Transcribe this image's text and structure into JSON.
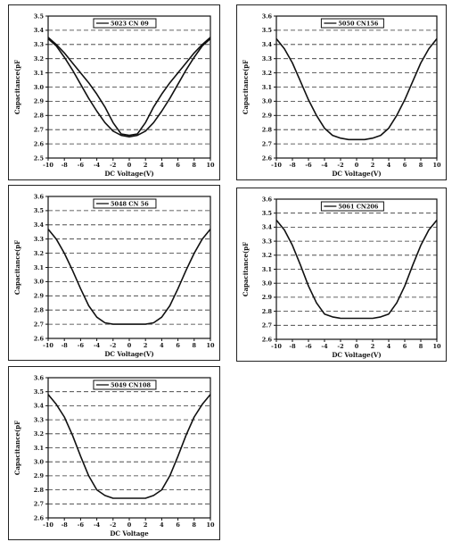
{
  "chart_data": [
    {
      "type": "line",
      "legend": "5023 CN 09",
      "xlabel": "DC Voltage(V)",
      "ylabel": "Capacitance(pF",
      "xlim": [
        -10,
        10
      ],
      "ylim": [
        2.5,
        3.5
      ],
      "xticks": [
        "-10",
        "-8",
        "-6",
        "-4",
        "-2",
        "0",
        "2",
        "4",
        "6",
        "8",
        "10"
      ],
      "yticks": [
        "2.5",
        "2.6",
        "2.7",
        "2.8",
        "2.9",
        "3.0",
        "3.1",
        "3.2",
        "3.3",
        "3.4",
        "3.5"
      ],
      "grid": "horizontal dashed",
      "legend_position": "top-center",
      "series": [
        {
          "x": [
            -10,
            -9,
            -8,
            -7,
            -6,
            -5,
            -4,
            -3,
            -2,
            -1,
            0,
            1,
            2,
            3,
            4,
            5,
            6,
            7,
            8,
            9,
            10
          ],
          "y": [
            3.35,
            3.3,
            3.24,
            3.17,
            3.1,
            3.03,
            2.95,
            2.86,
            2.75,
            2.67,
            2.66,
            2.67,
            2.75,
            2.86,
            2.95,
            3.03,
            3.1,
            3.17,
            3.24,
            3.3,
            3.35
          ]
        },
        {
          "x": [
            -10,
            -9,
            -8,
            -7,
            -6,
            -5,
            -4,
            -3,
            -2,
            -1,
            0,
            1,
            2,
            3,
            4,
            5,
            6,
            7,
            8,
            9,
            10
          ],
          "y": [
            3.34,
            3.29,
            3.21,
            3.12,
            3.02,
            2.92,
            2.83,
            2.75,
            2.69,
            2.66,
            2.65,
            2.66,
            2.69,
            2.75,
            2.83,
            2.92,
            3.02,
            3.12,
            3.21,
            3.29,
            3.34
          ]
        }
      ]
    },
    {
      "type": "line",
      "legend": "5050 CN156",
      "xlabel": "DC Voltage(V)",
      "ylabel": "Capacitance(pF",
      "xlim": [
        -10,
        10
      ],
      "ylim": [
        2.6,
        3.6
      ],
      "xticks": [
        "-10",
        "-8",
        "-6",
        "-4",
        "-2",
        "0",
        "2",
        "4",
        "6",
        "8",
        "10"
      ],
      "yticks": [
        "2.6",
        "2.7",
        "2.8",
        "2.9",
        "3.0",
        "3.1",
        "3.2",
        "3.3",
        "3.4",
        "3.5",
        "3.6"
      ],
      "grid": "horizontal dashed",
      "legend_position": "top-center",
      "series": [
        {
          "x": [
            -10,
            -9,
            -8,
            -7,
            -6,
            -5,
            -4,
            -3,
            -2,
            -1,
            0,
            1,
            2,
            3,
            4,
            5,
            6,
            7,
            8,
            9,
            10
          ],
          "y": [
            3.44,
            3.37,
            3.27,
            3.14,
            3.01,
            2.9,
            2.81,
            2.76,
            2.74,
            2.73,
            2.73,
            2.73,
            2.74,
            2.76,
            2.81,
            2.9,
            3.01,
            3.14,
            3.27,
            3.37,
            3.44
          ]
        }
      ]
    },
    {
      "type": "line",
      "legend": "5048 CN 56",
      "xlabel": "DC Voltage(V)",
      "ylabel": "Capacitance(pF",
      "xlim": [
        -10,
        10
      ],
      "ylim": [
        2.6,
        3.6
      ],
      "xticks": [
        "-10",
        "-8",
        "-6",
        "-4",
        "-2",
        "0",
        "2",
        "4",
        "6",
        "8",
        "10"
      ],
      "yticks": [
        "2.6",
        "2.7",
        "2.8",
        "2.9",
        "3.0",
        "3.1",
        "3.2",
        "3.3",
        "3.4",
        "3.5",
        "3.6"
      ],
      "grid": "horizontal dashed",
      "legend_position": "top-center",
      "series": [
        {
          "x": [
            -10,
            -9,
            -8,
            -7,
            -6,
            -5,
            -4,
            -3,
            -2,
            -1,
            0,
            1,
            2,
            3,
            4,
            5,
            6,
            7,
            8,
            9,
            10
          ],
          "y": [
            3.37,
            3.3,
            3.2,
            3.08,
            2.95,
            2.83,
            2.75,
            2.71,
            2.7,
            2.7,
            2.7,
            2.7,
            2.7,
            2.71,
            2.75,
            2.83,
            2.95,
            3.08,
            3.2,
            3.3,
            3.37
          ]
        }
      ]
    },
    {
      "type": "line",
      "legend": "5061 CN206",
      "xlabel": "DC Voltage(V)",
      "ylabel": "Capacitance(pF",
      "xlim": [
        -10,
        10
      ],
      "ylim": [
        2.6,
        3.6
      ],
      "xticks": [
        "-10",
        "-8",
        "-6",
        "-4",
        "-2",
        "0",
        "2",
        "4",
        "6",
        "8",
        "10"
      ],
      "yticks": [
        "2.6",
        "2.7",
        "2.8",
        "2.9",
        "3.0",
        "3.1",
        "3.2",
        "3.3",
        "3.4",
        "3.5",
        "3.6"
      ],
      "grid": "horizontal dashed",
      "legend_position": "top-center",
      "series": [
        {
          "x": [
            -10,
            -9,
            -8,
            -7,
            -6,
            -5,
            -4,
            -3,
            -2,
            -1,
            0,
            1,
            2,
            3,
            4,
            5,
            6,
            7,
            8,
            9,
            10
          ],
          "y": [
            3.45,
            3.38,
            3.27,
            3.13,
            2.98,
            2.86,
            2.78,
            2.76,
            2.75,
            2.75,
            2.75,
            2.75,
            2.75,
            2.76,
            2.78,
            2.86,
            2.98,
            3.13,
            3.27,
            3.38,
            3.45
          ]
        }
      ]
    },
    {
      "type": "line",
      "legend": "5049 CN108",
      "xlabel": "DC Voltage",
      "ylabel": "Capacitance(pF",
      "xlim": [
        -10,
        10
      ],
      "ylim": [
        2.6,
        3.6
      ],
      "xticks": [
        "-10",
        "-8",
        "-6",
        "-4",
        "-2",
        "0",
        "2",
        "4",
        "6",
        "8",
        "10"
      ],
      "yticks": [
        "2.6",
        "2.7",
        "2.8",
        "2.9",
        "3.0",
        "3.1",
        "3.2",
        "3.3",
        "3.4",
        "3.5",
        "3.6"
      ],
      "grid": "horizontal dashed",
      "legend_position": "top-center",
      "series": [
        {
          "x": [
            -10,
            -9,
            -8,
            -7,
            -6,
            -5,
            -4,
            -3,
            -2,
            -1,
            0,
            1,
            2,
            3,
            4,
            5,
            6,
            7,
            8,
            9,
            10
          ],
          "y": [
            3.48,
            3.41,
            3.32,
            3.19,
            3.04,
            2.9,
            2.8,
            2.76,
            2.74,
            2.74,
            2.74,
            2.74,
            2.74,
            2.76,
            2.8,
            2.9,
            3.04,
            3.19,
            3.32,
            3.41,
            3.48
          ]
        }
      ]
    }
  ],
  "colors": {
    "line": "#111111",
    "grid": "#333333",
    "frame": "#111111"
  }
}
